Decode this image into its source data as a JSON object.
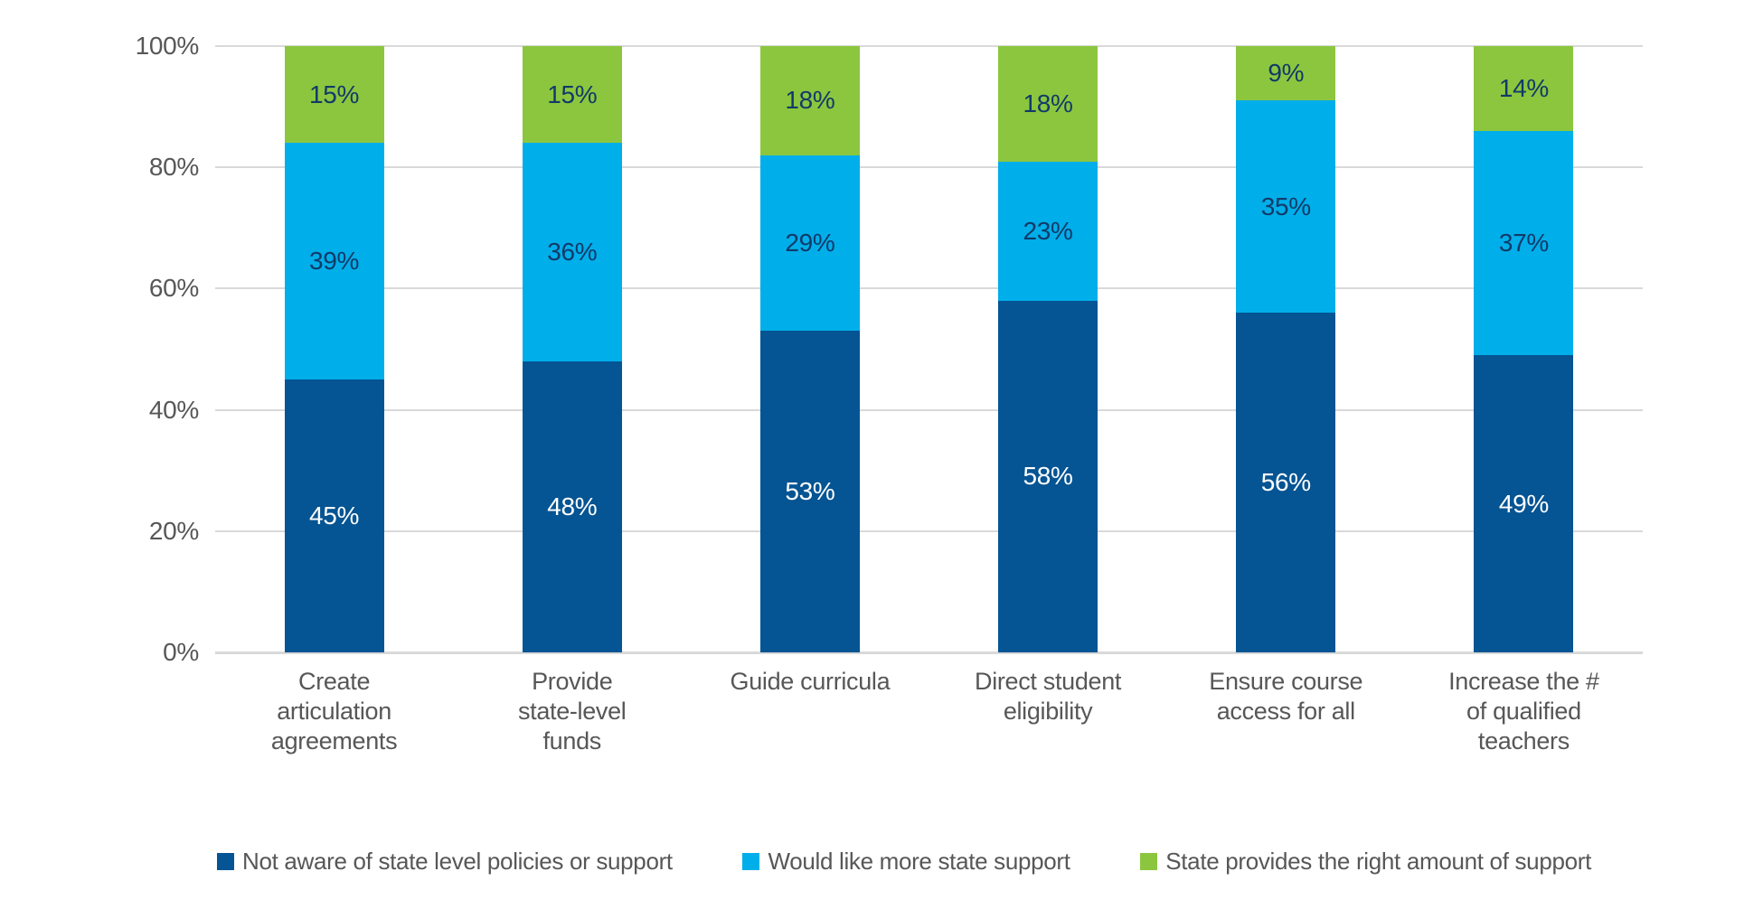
{
  "chart_data": {
    "type": "bar",
    "stacked": true,
    "percent_stacked": true,
    "title": "",
    "xlabel": "",
    "ylabel": "",
    "categories": [
      {
        "label": "Create articulation agreements",
        "lines": [
          "Create",
          "articulation",
          "agreements"
        ]
      },
      {
        "label": "Provide state-level funds",
        "lines": [
          "Provide",
          "state-level",
          "funds"
        ]
      },
      {
        "label": "Guide curricula",
        "lines": [
          "Guide curricula"
        ]
      },
      {
        "label": "Direct student eligibility",
        "lines": [
          "Direct student",
          "eligibility"
        ]
      },
      {
        "label": "Ensure course access for all",
        "lines": [
          "Ensure course",
          "access for all"
        ]
      },
      {
        "label": "Increase the # of qualified teachers",
        "lines": [
          "Increase the #",
          "of qualified",
          "teachers"
        ]
      }
    ],
    "series": [
      {
        "name": "Not aware of state level policies or support",
        "color": "#055493",
        "label_color": "#ffffff",
        "values": [
          45,
          48,
          53,
          58,
          56,
          49
        ],
        "value_labels": [
          "45%",
          "48%",
          "53%",
          "58%",
          "56%",
          "49%"
        ]
      },
      {
        "name": "Would like more state support",
        "color": "#00aeea",
        "label_color": "#113a68",
        "values": [
          39,
          36,
          29,
          23,
          35,
          37
        ],
        "value_labels": [
          "39%",
          "36%",
          "29%",
          "23%",
          "35%",
          "37%"
        ]
      },
      {
        "name": "State provides the right amount of support",
        "color": "#8cc63f",
        "label_color": "#113a68",
        "values": [
          15,
          15,
          18,
          18,
          9,
          14
        ],
        "value_labels": [
          "15%",
          "15%",
          "18%",
          "18%",
          "9%",
          "14%"
        ]
      }
    ],
    "y_axis": {
      "min": 0,
      "max": 100,
      "tick_values": [
        0,
        20,
        40,
        60,
        80,
        100
      ],
      "tick_labels": [
        "0%",
        "20%",
        "40%",
        "60%",
        "80%",
        "100%"
      ],
      "grid": true,
      "gridline_color": "#d9d9d9",
      "tick_color": "#575757"
    },
    "legend": {
      "position": "bottom",
      "items": [
        {
          "label": "Not aware of state level policies or support",
          "color": "#055493"
        },
        {
          "label": "Would like more state support",
          "color": "#00aeea"
        },
        {
          "label": "State provides the right amount of support",
          "color": "#8cc63f"
        }
      ]
    }
  }
}
